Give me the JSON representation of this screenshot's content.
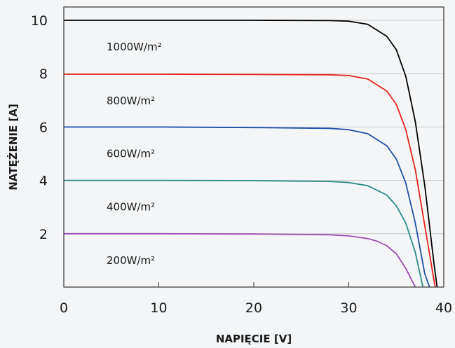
{
  "chart_data": {
    "type": "line",
    "title": "",
    "xlabel": "NAPIĘCIE [V]",
    "ylabel": "NATĘŻENIE [A]",
    "xlim": [
      0,
      40
    ],
    "ylim": [
      0,
      10.5
    ],
    "x_ticks": [
      "0",
      "10",
      "20",
      "30",
      "40"
    ],
    "y_ticks": [
      "2",
      "4",
      "6",
      "8",
      "10"
    ],
    "grid": "horizontal",
    "legend": "none",
    "series": [
      {
        "name": "1000W/m²",
        "color": "#000000",
        "points": [
          [
            0,
            10
          ],
          [
            10,
            10
          ],
          [
            20,
            10
          ],
          [
            28,
            9.99
          ],
          [
            30,
            9.97
          ],
          [
            32,
            9.85
          ],
          [
            34,
            9.4
          ],
          [
            35,
            8.9
          ],
          [
            36,
            7.9
          ],
          [
            37,
            6.2
          ],
          [
            38,
            3.8
          ],
          [
            39,
            0.8
          ],
          [
            39.3,
            0
          ]
        ]
      },
      {
        "name": "800W/m²",
        "color": "#e8221e",
        "points": [
          [
            0,
            7.98
          ],
          [
            10,
            7.98
          ],
          [
            20,
            7.97
          ],
          [
            28,
            7.96
          ],
          [
            30,
            7.93
          ],
          [
            32,
            7.8
          ],
          [
            34,
            7.35
          ],
          [
            35,
            6.85
          ],
          [
            36,
            5.9
          ],
          [
            37,
            4.4
          ],
          [
            38,
            2.3
          ],
          [
            39,
            0.2
          ],
          [
            39.1,
            0
          ]
        ]
      },
      {
        "name": "600W/m²",
        "color": "#1f4fa8",
        "points": [
          [
            0,
            6
          ],
          [
            10,
            6
          ],
          [
            20,
            5.98
          ],
          [
            28,
            5.95
          ],
          [
            30,
            5.9
          ],
          [
            32,
            5.75
          ],
          [
            34,
            5.3
          ],
          [
            35,
            4.8
          ],
          [
            36,
            3.9
          ],
          [
            37,
            2.4
          ],
          [
            38,
            0.5
          ],
          [
            38.5,
            0
          ]
        ]
      },
      {
        "name": "400W/m²",
        "color": "#2a8a86",
        "points": [
          [
            0,
            4
          ],
          [
            10,
            4
          ],
          [
            20,
            3.99
          ],
          [
            28,
            3.96
          ],
          [
            30,
            3.92
          ],
          [
            32,
            3.8
          ],
          [
            34,
            3.45
          ],
          [
            35,
            3.05
          ],
          [
            36,
            2.4
          ],
          [
            37,
            1.3
          ],
          [
            37.8,
            0
          ]
        ]
      },
      {
        "name": "200W/m²",
        "color": "#9a4cb0",
        "points": [
          [
            0,
            2
          ],
          [
            10,
            2
          ],
          [
            20,
            1.99
          ],
          [
            28,
            1.96
          ],
          [
            30,
            1.92
          ],
          [
            32,
            1.82
          ],
          [
            33,
            1.72
          ],
          [
            34,
            1.55
          ],
          [
            35,
            1.25
          ],
          [
            36,
            0.7
          ],
          [
            37,
            0
          ]
        ]
      }
    ]
  }
}
